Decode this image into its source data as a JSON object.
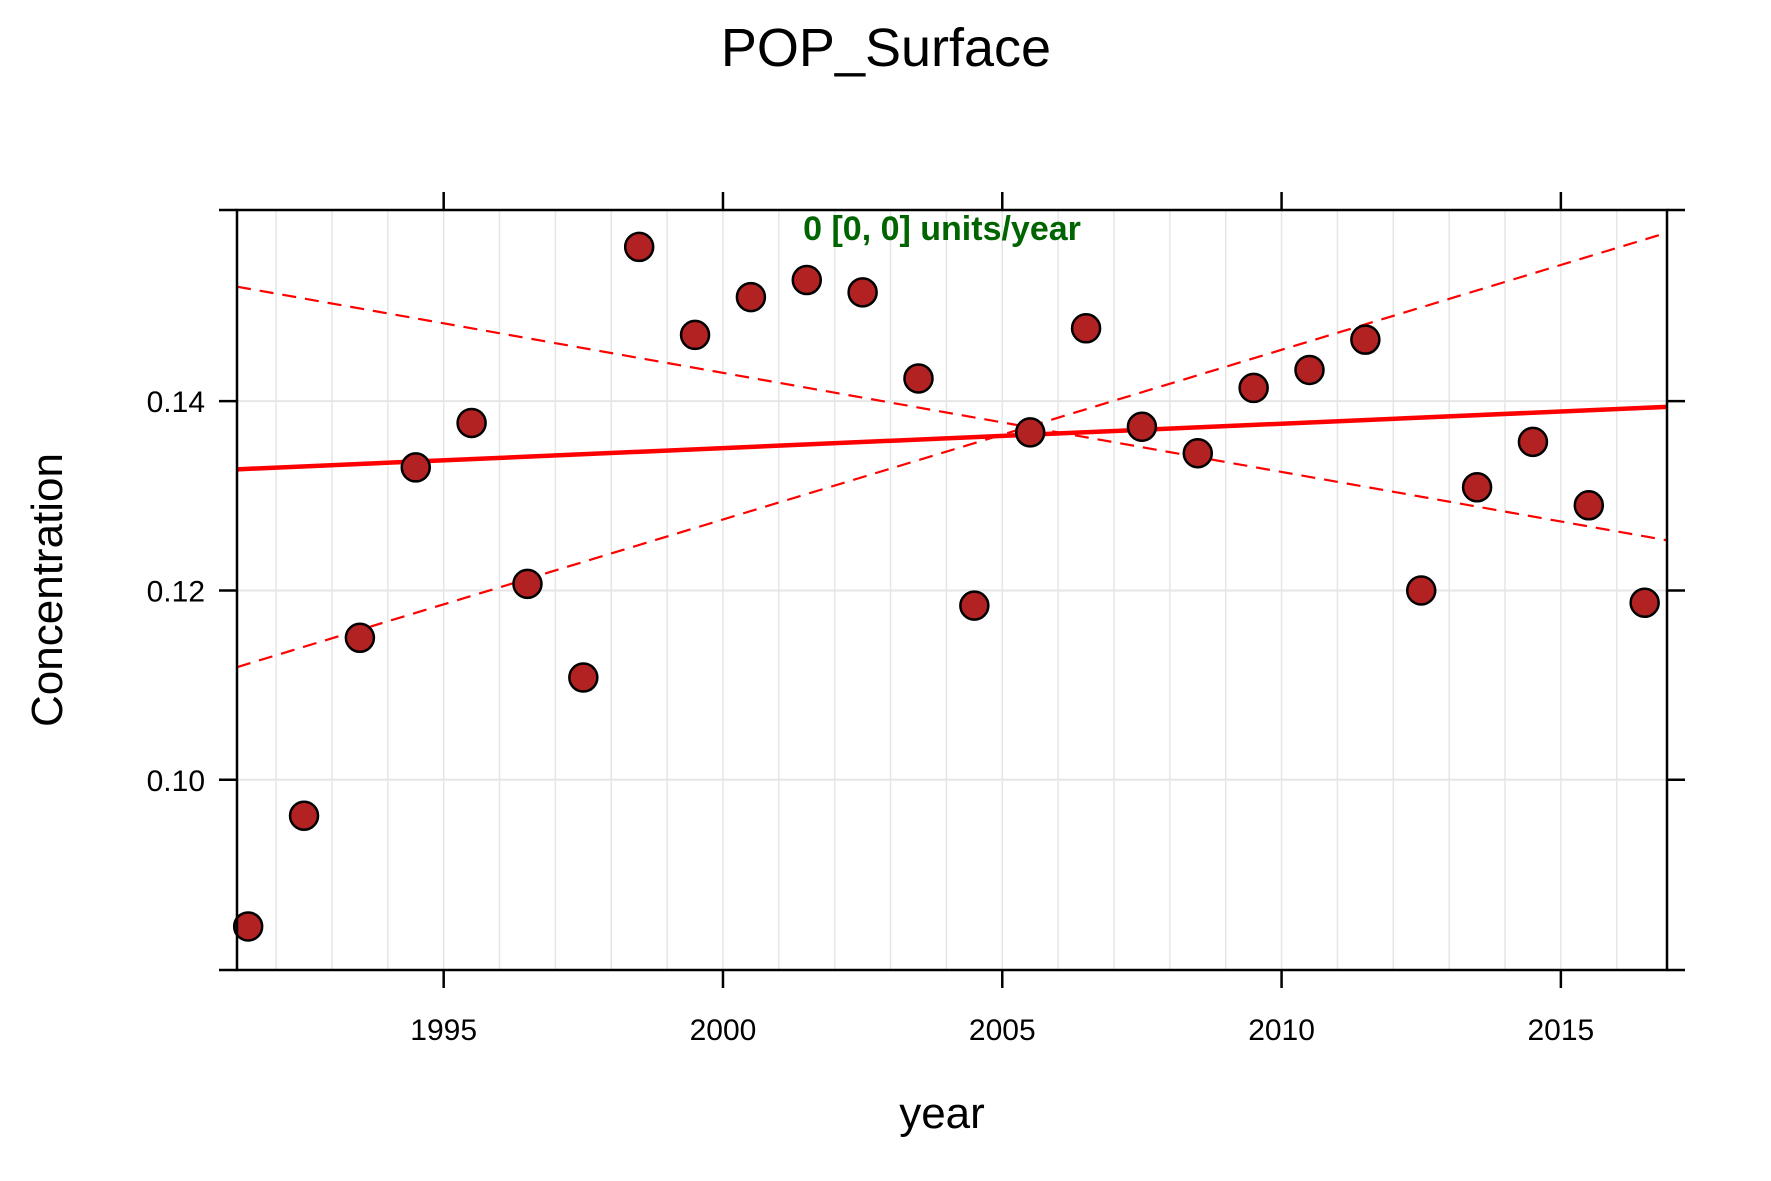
{
  "chart_data": {
    "type": "scatter",
    "title": "POP_Surface",
    "xlabel": "year",
    "ylabel": "Concentration",
    "annotation": "0 [0, 0] units/year",
    "xlim": [
      1991.3,
      2016.9
    ],
    "ylim": [
      0.0799,
      0.1602
    ],
    "x_ticks": [
      1995,
      2000,
      2005,
      2010,
      2015
    ],
    "y_ticks": [
      0.1,
      0.12,
      0.14
    ],
    "y_tick_labels": [
      "0.10",
      "0.12",
      "0.14"
    ],
    "grid": true,
    "points": [
      {
        "x": 1991.5,
        "y": 0.0845
      },
      {
        "x": 1992.5,
        "y": 0.0962
      },
      {
        "x": 1993.5,
        "y": 0.115
      },
      {
        "x": 1994.5,
        "y": 0.133
      },
      {
        "x": 1995.5,
        "y": 0.1377
      },
      {
        "x": 1996.5,
        "y": 0.1207
      },
      {
        "x": 1997.5,
        "y": 0.1108
      },
      {
        "x": 1998.5,
        "y": 0.1563
      },
      {
        "x": 1999.5,
        "y": 0.147
      },
      {
        "x": 2000.5,
        "y": 0.151
      },
      {
        "x": 2001.5,
        "y": 0.1528
      },
      {
        "x": 2002.5,
        "y": 0.1515
      },
      {
        "x": 2003.5,
        "y": 0.1424
      },
      {
        "x": 2004.5,
        "y": 0.1184
      },
      {
        "x": 2005.5,
        "y": 0.1367
      },
      {
        "x": 2006.5,
        "y": 0.1477
      },
      {
        "x": 2007.5,
        "y": 0.1373
      },
      {
        "x": 2008.5,
        "y": 0.1345
      },
      {
        "x": 2009.5,
        "y": 0.1414
      },
      {
        "x": 2010.5,
        "y": 0.1433
      },
      {
        "x": 2011.5,
        "y": 0.1465
      },
      {
        "x": 2012.5,
        "y": 0.12
      },
      {
        "x": 2013.5,
        "y": 0.1309
      },
      {
        "x": 2014.5,
        "y": 0.1357
      },
      {
        "x": 2015.5,
        "y": 0.129
      },
      {
        "x": 2016.5,
        "y": 0.1187
      }
    ],
    "trend_line": {
      "x": [
        1991.3,
        2016.9
      ],
      "y": [
        0.1328,
        0.1394
      ]
    },
    "ci_lines": [
      {
        "x": [
          1991.3,
          2016.9
        ],
        "y": [
          0.1521,
          0.1253
        ]
      },
      {
        "x": [
          1991.3,
          2016.9
        ],
        "y": [
          0.1119,
          0.1578
        ]
      }
    ],
    "colors": {
      "point_fill": "#b22222",
      "point_stroke": "#000000",
      "trend": "#ff0000",
      "annotation": "#006400",
      "grid": "#e6e6e6"
    }
  }
}
